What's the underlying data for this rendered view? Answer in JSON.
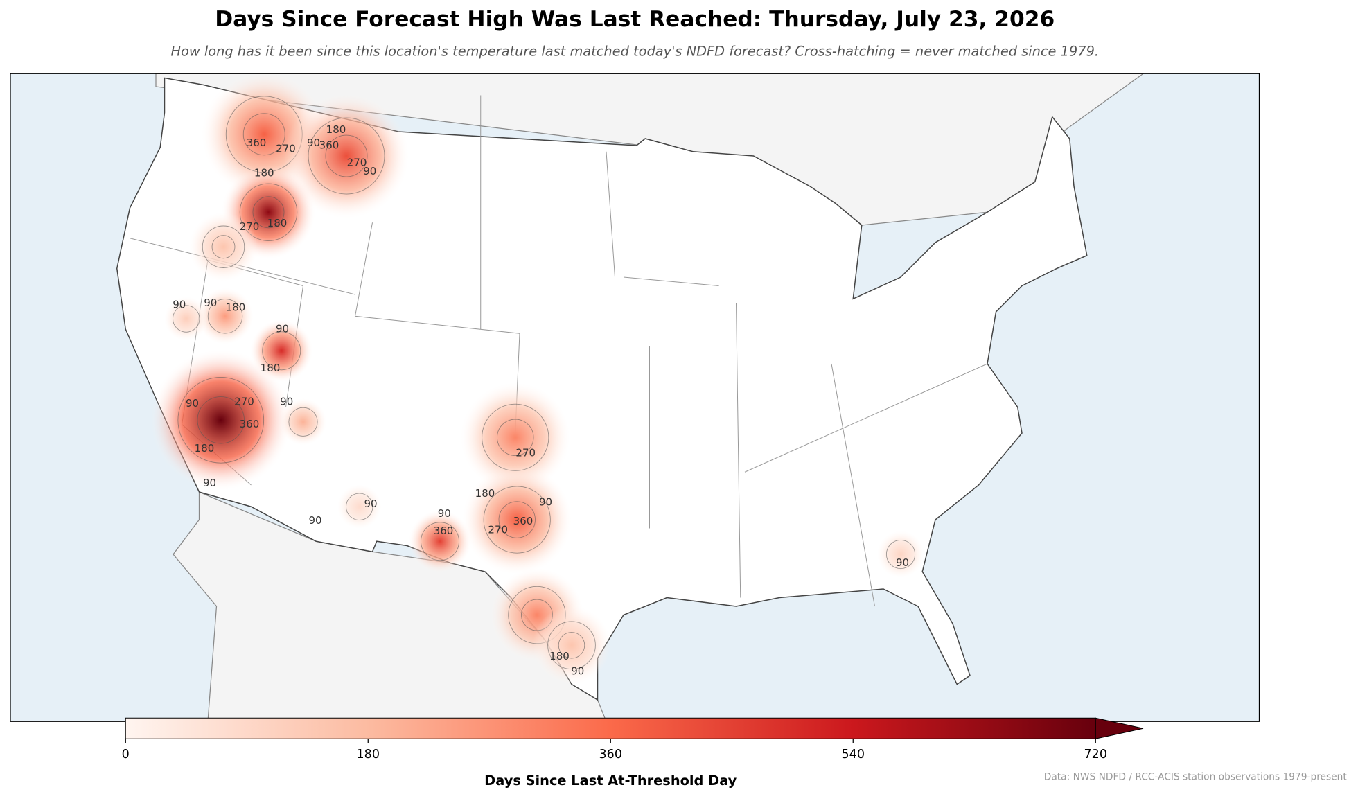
{
  "chart_data": {
    "type": "map",
    "title": "Days Since Forecast High Was Last Reached: Thursday, July 23, 2026",
    "subtitle": "How long has it been since this location's temperature last matched today's NDFD forecast? Cross-hatching = never matched since 1979.",
    "colorbar_label": "Days Since Last At-Threshold Day",
    "clim": [
      0,
      720
    ],
    "cticks": [
      0,
      180,
      360,
      540,
      720
    ],
    "colormap": [
      "#fff5f0",
      "#fcbba1",
      "#fb6a4a",
      "#cb181d",
      "#67000d"
    ],
    "hotspot_peaks": [
      380,
      420,
      650,
      150,
      250,
      120,
      500,
      750,
      200,
      300,
      380,
      450,
      300,
      150,
      100,
      80
    ],
    "contour_labels": [
      360,
      270,
      180,
      90,
      180,
      360,
      270,
      90,
      270,
      180,
      90,
      90,
      180,
      90,
      180,
      90,
      270,
      90,
      360,
      180,
      90,
      90,
      90,
      90,
      360,
      270,
      180,
      90,
      360,
      270,
      180,
      90,
      90
    ],
    "source": "Data: NWS NDFD / RCC-ACIS station observations 1979-present"
  }
}
